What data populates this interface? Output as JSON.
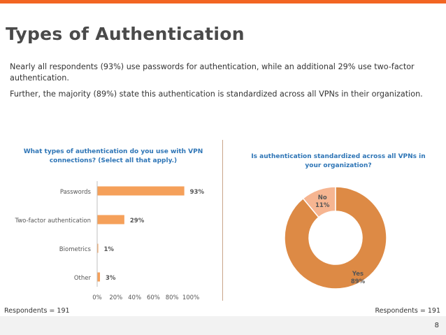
{
  "slide": {
    "title": "Types of Authentication",
    "paragraph1": "Nearly all respondents (93%) use passwords for authentication, while an additional 29% use two-factor authentication.",
    "paragraph2": "Further, the majority (89%) state this authentication is standardized across all VPNs in their organization.",
    "footer_left": "Respondents = 191",
    "footer_right": "Respondents = 191",
    "page_number": "8",
    "accent_color": "#f26522"
  },
  "chart_data": [
    {
      "type": "bar",
      "orientation": "horizontal",
      "title": "What types of authentication do you use with VPN connections? (Select all that apply.)",
      "categories": [
        "Passwords",
        "Two-factor authentication",
        "Biometrics",
        "Other"
      ],
      "values": [
        93,
        29,
        1,
        3
      ],
      "value_labels": [
        "93%",
        "29%",
        "1%",
        "3%"
      ],
      "xlim": [
        0,
        100
      ],
      "xticks": [
        "0%",
        "20%",
        "40%",
        "60%",
        "80%",
        "100%"
      ],
      "grid": false,
      "color": "#f5a05a"
    },
    {
      "type": "pie",
      "donut": true,
      "title": "Is authentication standardized across all VPNs in your organization?",
      "labels": [
        "Yes",
        "No"
      ],
      "values": [
        89,
        11
      ],
      "value_labels": [
        "89%",
        "11%"
      ],
      "colors": [
        "#dd8a45",
        "#f6b591"
      ]
    }
  ]
}
